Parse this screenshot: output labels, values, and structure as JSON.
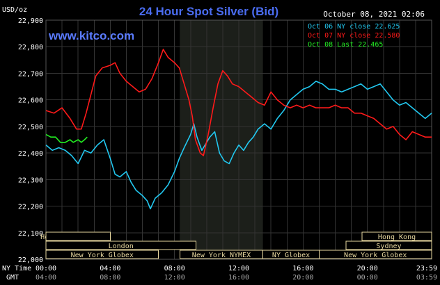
{
  "header": {
    "title": "24 Hour Spot Silver (Bid)",
    "timestamp": "October 08, 2021 02:06",
    "unit": "USD/oz",
    "watermark": "www.kitco.com"
  },
  "colors": {
    "background": "#000000",
    "grid": "#333333",
    "title": "#4a6cf0",
    "oct06": "#22c8f0",
    "oct07": "#ff1a1a",
    "oct08": "#22ee22",
    "text": "#ffffff",
    "session_box": "#e8d8a0",
    "shade": "#1c1f1a"
  },
  "legend": [
    {
      "label": "Oct 06 NY close 22.625",
      "color": "#22c8f0"
    },
    {
      "label": "Oct 07 NY close 22.580",
      "color": "#ff1a1a"
    },
    {
      "label": "Oct 08 Last 22.465",
      "color": "#22ee22"
    }
  ],
  "sessions": {
    "left": [
      {
        "label": "Hong Kong",
        "start": 0.0,
        "end": 1.67,
        "row": 0
      },
      {
        "label": "",
        "start": 0.0,
        "end": 4.0,
        "row": 0
      },
      {
        "label": "London",
        "start": 0.0,
        "end": 9.33,
        "row": 1
      },
      {
        "label": "New York Globex",
        "start": 0.0,
        "end": 7.0,
        "row": 2
      },
      {
        "label": "New York NYMEX",
        "start": 8.33,
        "end": 13.5,
        "row": 2
      },
      {
        "label": "NY Globex",
        "start": 13.5,
        "end": 17.0,
        "row": 2
      }
    ],
    "right": [
      {
        "label": "Hong Kong",
        "start": 19.67,
        "end": 24.0,
        "row": 0
      },
      {
        "label": "Sydney",
        "start": 18.67,
        "end": 24.0,
        "row": 1
      },
      {
        "label": "New York Globex",
        "start": 17.0,
        "end": 24.0,
        "row": 2
      }
    ]
  },
  "axis": {
    "ny_time_label": "NY Time",
    "gmt_label": "GMT",
    "ny_ticks": [
      "00:00",
      "04:00",
      "08:00",
      "12:00",
      "16:00",
      "20:00",
      "23:59"
    ],
    "gmt_ticks": [
      "04:00",
      "08:00",
      "12:00",
      "16:00",
      "20:00",
      "00:00",
      "03:59"
    ]
  },
  "chart_data": {
    "type": "line",
    "title": "24 Hour Spot Silver (Bid)",
    "ylabel": "USD/oz",
    "xlabel": "NY Time",
    "ylim": [
      22.0,
      22.9
    ],
    "xlim": [
      0,
      24
    ],
    "y_ticks": [
      "22,000",
      "22,100",
      "22,200",
      "22,300",
      "22,400",
      "22,500",
      "22,600",
      "22,700",
      "22,800",
      "22,900"
    ],
    "x_ticks": [
      "00:00",
      "04:00",
      "08:00",
      "12:00",
      "16:00",
      "20:00",
      "23:59"
    ],
    "grid": true,
    "legend_position": "top-right",
    "shaded_region": [
      8.33,
      13.5
    ],
    "series": [
      {
        "name": "Oct 06 NY close 22.625",
        "color": "#22c8f0",
        "points": [
          [
            0.0,
            22.43
          ],
          [
            0.4,
            22.41
          ],
          [
            0.8,
            22.42
          ],
          [
            1.2,
            22.41
          ],
          [
            1.6,
            22.39
          ],
          [
            2.0,
            22.36
          ],
          [
            2.4,
            22.41
          ],
          [
            2.8,
            22.4
          ],
          [
            3.2,
            22.43
          ],
          [
            3.6,
            22.45
          ],
          [
            4.0,
            22.38
          ],
          [
            4.3,
            22.32
          ],
          [
            4.6,
            22.31
          ],
          [
            5.0,
            22.33
          ],
          [
            5.3,
            22.29
          ],
          [
            5.6,
            22.26
          ],
          [
            6.0,
            22.24
          ],
          [
            6.3,
            22.22
          ],
          [
            6.5,
            22.19
          ],
          [
            6.8,
            22.23
          ],
          [
            7.2,
            22.25
          ],
          [
            7.6,
            22.28
          ],
          [
            8.0,
            22.33
          ],
          [
            8.3,
            22.38
          ],
          [
            8.6,
            22.42
          ],
          [
            9.0,
            22.47
          ],
          [
            9.2,
            22.51
          ],
          [
            9.4,
            22.46
          ],
          [
            9.7,
            22.41
          ],
          [
            9.9,
            22.43
          ],
          [
            10.2,
            22.46
          ],
          [
            10.5,
            22.48
          ],
          [
            10.8,
            22.4
          ],
          [
            11.1,
            22.37
          ],
          [
            11.4,
            22.36
          ],
          [
            11.7,
            22.4
          ],
          [
            12.0,
            22.43
          ],
          [
            12.3,
            22.41
          ],
          [
            12.6,
            22.44
          ],
          [
            12.9,
            22.46
          ],
          [
            13.2,
            22.49
          ],
          [
            13.6,
            22.51
          ],
          [
            14.0,
            22.49
          ],
          [
            14.4,
            22.53
          ],
          [
            14.8,
            22.56
          ],
          [
            15.2,
            22.6
          ],
          [
            15.6,
            22.62
          ],
          [
            16.0,
            22.64
          ],
          [
            16.4,
            22.65
          ],
          [
            16.8,
            22.67
          ],
          [
            17.2,
            22.66
          ],
          [
            17.6,
            22.64
          ],
          [
            18.0,
            22.64
          ],
          [
            18.4,
            22.63
          ],
          [
            18.8,
            22.64
          ],
          [
            19.2,
            22.65
          ],
          [
            19.6,
            22.66
          ],
          [
            20.0,
            22.64
          ],
          [
            20.4,
            22.65
          ],
          [
            20.8,
            22.66
          ],
          [
            21.2,
            22.63
          ],
          [
            21.6,
            22.6
          ],
          [
            22.0,
            22.58
          ],
          [
            22.4,
            22.59
          ],
          [
            22.8,
            22.57
          ],
          [
            23.2,
            22.55
          ],
          [
            23.6,
            22.53
          ],
          [
            24.0,
            22.55
          ]
        ]
      },
      {
        "name": "Oct 07 NY close 22.580",
        "color": "#ff1a1a",
        "points": [
          [
            0.0,
            22.56
          ],
          [
            0.5,
            22.55
          ],
          [
            1.0,
            22.57
          ],
          [
            1.5,
            22.53
          ],
          [
            1.9,
            22.49
          ],
          [
            2.2,
            22.49
          ],
          [
            2.5,
            22.55
          ],
          [
            2.8,
            22.62
          ],
          [
            3.1,
            22.69
          ],
          [
            3.5,
            22.72
          ],
          [
            4.0,
            22.73
          ],
          [
            4.3,
            22.74
          ],
          [
            4.6,
            22.7
          ],
          [
            5.0,
            22.67
          ],
          [
            5.4,
            22.65
          ],
          [
            5.8,
            22.63
          ],
          [
            6.2,
            22.64
          ],
          [
            6.6,
            22.68
          ],
          [
            7.0,
            22.74
          ],
          [
            7.3,
            22.79
          ],
          [
            7.6,
            22.76
          ],
          [
            8.0,
            22.74
          ],
          [
            8.3,
            22.72
          ],
          [
            8.6,
            22.66
          ],
          [
            8.9,
            22.6
          ],
          [
            9.1,
            22.54
          ],
          [
            9.3,
            22.45
          ],
          [
            9.6,
            22.4
          ],
          [
            9.8,
            22.39
          ],
          [
            10.1,
            22.47
          ],
          [
            10.4,
            22.57
          ],
          [
            10.7,
            22.66
          ],
          [
            11.0,
            22.71
          ],
          [
            11.3,
            22.69
          ],
          [
            11.6,
            22.66
          ],
          [
            12.0,
            22.65
          ],
          [
            12.4,
            22.63
          ],
          [
            12.8,
            22.61
          ],
          [
            13.2,
            22.59
          ],
          [
            13.6,
            22.58
          ],
          [
            14.0,
            22.63
          ],
          [
            14.4,
            22.6
          ],
          [
            14.8,
            22.58
          ],
          [
            15.2,
            22.57
          ],
          [
            15.6,
            22.58
          ],
          [
            16.0,
            22.57
          ],
          [
            16.4,
            22.58
          ],
          [
            16.8,
            22.57
          ],
          [
            17.2,
            22.57
          ],
          [
            17.6,
            22.57
          ],
          [
            18.0,
            22.58
          ],
          [
            18.4,
            22.57
          ],
          [
            18.8,
            22.57
          ],
          [
            19.2,
            22.55
          ],
          [
            19.6,
            22.55
          ],
          [
            20.0,
            22.54
          ],
          [
            20.4,
            22.53
          ],
          [
            20.8,
            22.51
          ],
          [
            21.2,
            22.49
          ],
          [
            21.6,
            22.5
          ],
          [
            22.0,
            22.47
          ],
          [
            22.4,
            22.45
          ],
          [
            22.8,
            22.48
          ],
          [
            23.2,
            22.47
          ],
          [
            23.6,
            22.46
          ],
          [
            24.0,
            22.46
          ]
        ]
      },
      {
        "name": "Oct 08 Last 22.465",
        "color": "#22ee22",
        "points": [
          [
            0.0,
            22.47
          ],
          [
            0.3,
            22.46
          ],
          [
            0.6,
            22.46
          ],
          [
            0.9,
            22.44
          ],
          [
            1.2,
            22.44
          ],
          [
            1.5,
            22.45
          ],
          [
            1.7,
            22.44
          ],
          [
            2.0,
            22.45
          ],
          [
            2.2,
            22.44
          ],
          [
            2.4,
            22.45
          ],
          [
            2.57,
            22.46
          ]
        ]
      }
    ]
  }
}
